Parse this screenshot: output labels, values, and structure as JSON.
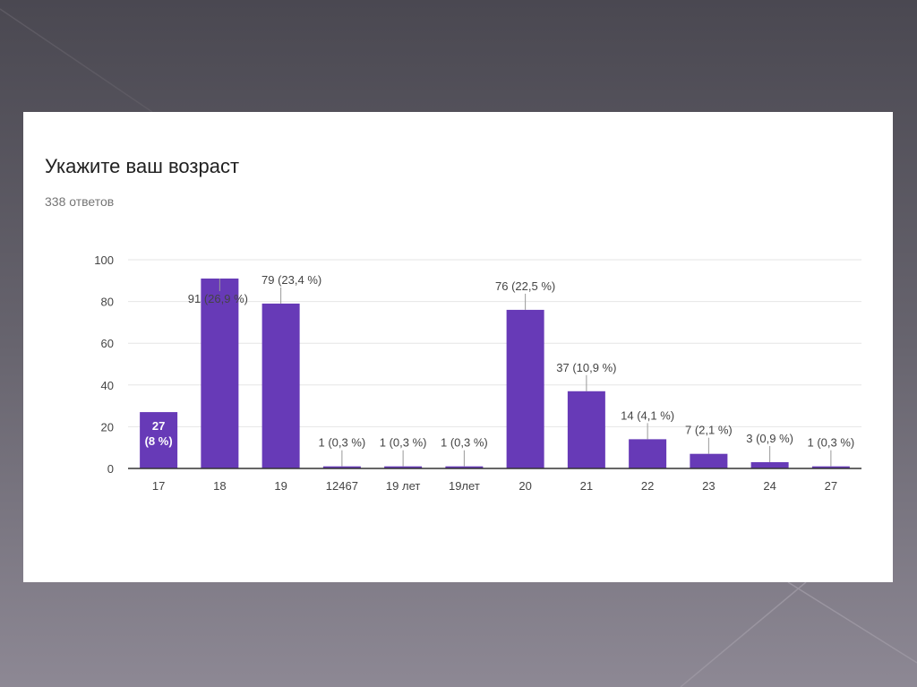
{
  "slide": {
    "title": "Укажите ваш возраст",
    "subtitle": "338 ответов"
  },
  "chart_data": {
    "type": "bar",
    "title": "Укажите ваш возраст",
    "subtitle": "338 ответов",
    "categories": [
      "17",
      "18",
      "19",
      "12467",
      "19 лет",
      "19лет",
      "20",
      "21",
      "22",
      "23",
      "24",
      "27"
    ],
    "values": [
      27,
      91,
      79,
      1,
      1,
      1,
      76,
      37,
      14,
      7,
      3,
      1
    ],
    "data_labels": [
      "27 (8 %)",
      "91 (26,9 %)",
      "79 (23,4 %)",
      "1 (0,3 %)",
      "1 (0,3 %)",
      "1 (0,3 %)",
      "76 (22,5 %)",
      "37 (10,9 %)",
      "14 (4,1 %)",
      "7 (2,1 %)",
      "3 (0,9 %)",
      "1 (0,3 %)"
    ],
    "yticks": [
      "0",
      "20",
      "40",
      "60",
      "80",
      "100"
    ],
    "ylim": [
      0,
      100
    ],
    "xlabel": "",
    "ylabel": "",
    "grid": true,
    "bar_color": "#673ab7"
  }
}
